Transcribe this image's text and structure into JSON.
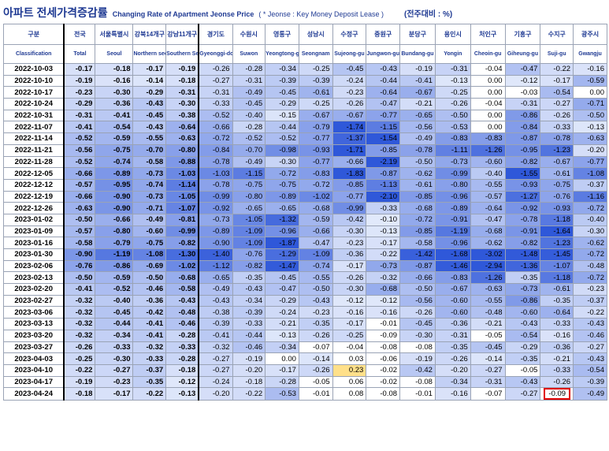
{
  "header": {
    "title_ko": "아파트 전세가격증감률",
    "title_en": "Changing Rate of Apartment Jeonse Price",
    "note": "( * Jeonse : Key Money Deposit Lease )",
    "unit": "(전주대비 : %)"
  },
  "columns": [
    {
      "ko": "구분",
      "en": "Classification"
    },
    {
      "ko": "전국",
      "en": "Total"
    },
    {
      "ko": "서울특별시",
      "en": "Seoul"
    },
    {
      "ko": "강북14개구",
      "en": "Northern seoul"
    },
    {
      "ko": "강남11개구",
      "en": "Southern Seoul"
    },
    {
      "ko": "경기도",
      "en": "Gyeonggi-do"
    },
    {
      "ko": "수원시",
      "en": "Suwon"
    },
    {
      "ko": "영통구",
      "en": "Yeongtong-gu"
    },
    {
      "ko": "성남시",
      "en": "Seongnam"
    },
    {
      "ko": "수정구",
      "en": "Sujeong-gu"
    },
    {
      "ko": "중원구",
      "en": "Jungwon-gu"
    },
    {
      "ko": "분당구",
      "en": "Bundang-gu"
    },
    {
      "ko": "용인시",
      "en": "Yongin"
    },
    {
      "ko": "처인구",
      "en": "Cheoin-gu"
    },
    {
      "ko": "기흥구",
      "en": "Giheung-gu"
    },
    {
      "ko": "수지구",
      "en": "Suji-gu"
    },
    {
      "ko": "광주시",
      "en": "Gwangju"
    }
  ],
  "rows": [
    {
      "date": "2022-10-03",
      "values": [
        "-0.17",
        "-0.18",
        "-0.17",
        "-0.19",
        "-0.26",
        "-0.28",
        "-0.34",
        "-0.25",
        "-0.45",
        "-0.43",
        "-0.19",
        "-0.31",
        "-0.04",
        "-0.47",
        "-0.22",
        "-0.16"
      ]
    },
    {
      "date": "2022-10-10",
      "values": [
        "-0.19",
        "-0.16",
        "-0.14",
        "-0.18",
        "-0.27",
        "-0.31",
        "-0.39",
        "-0.39",
        "-0.24",
        "-0.44",
        "-0.41",
        "-0.13",
        "0.00",
        "-0.12",
        "-0.17",
        "-0.59"
      ]
    },
    {
      "date": "2022-10-17",
      "values": [
        "-0.23",
        "-0.30",
        "-0.29",
        "-0.31",
        "-0.31",
        "-0.49",
        "-0.45",
        "-0.61",
        "-0.23",
        "-0.64",
        "-0.67",
        "-0.25",
        "0.00",
        "-0.03",
        "-0.54",
        "0.00"
      ]
    },
    {
      "date": "2022-10-24",
      "values": [
        "-0.29",
        "-0.36",
        "-0.43",
        "-0.30",
        "-0.33",
        "-0.45",
        "-0.29",
        "-0.25",
        "-0.26",
        "-0.47",
        "-0.21",
        "-0.26",
        "-0.04",
        "-0.31",
        "-0.27",
        "-0.71"
      ]
    },
    {
      "date": "2022-10-31",
      "values": [
        "-0.31",
        "-0.41",
        "-0.45",
        "-0.38",
        "-0.52",
        "-0.40",
        "-0.15",
        "-0.67",
        "-0.67",
        "-0.77",
        "-0.65",
        "-0.50",
        "0.00",
        "-0.86",
        "-0.26",
        "-0.50"
      ]
    },
    {
      "date": "2022-11-07",
      "values": [
        "-0.41",
        "-0.54",
        "-0.43",
        "-0.64",
        "-0.66",
        "-0.28",
        "-0.44",
        "-0.79",
        "-1.74",
        "-1.15",
        "-0.56",
        "-0.53",
        "0.00",
        "-0.84",
        "-0.33",
        "-0.13"
      ]
    },
    {
      "date": "2022-11-14",
      "values": [
        "-0.52",
        "-0.59",
        "-0.55",
        "-0.63",
        "-0.72",
        "-0.52",
        "-0.52",
        "-0.77",
        "-1.37",
        "-1.54",
        "-0.49",
        "-0.83",
        "-0.83",
        "-0.87",
        "-0.78",
        "-0.63"
      ]
    },
    {
      "date": "2022-11-21",
      "values": [
        "-0.56",
        "-0.75",
        "-0.70",
        "-0.80",
        "-0.84",
        "-0.70",
        "-0.98",
        "-0.93",
        "-1.71",
        "-0.85",
        "-0.78",
        "-1.11",
        "-1.26",
        "-0.95",
        "-1.23",
        "-0.20"
      ]
    },
    {
      "date": "2022-11-28",
      "values": [
        "-0.52",
        "-0.74",
        "-0.58",
        "-0.88",
        "-0.78",
        "-0.49",
        "-0.30",
        "-0.77",
        "-0.66",
        "-2.19",
        "-0.50",
        "-0.73",
        "-0.60",
        "-0.82",
        "-0.67",
        "-0.77"
      ]
    },
    {
      "date": "2022-12-05",
      "values": [
        "-0.66",
        "-0.89",
        "-0.73",
        "-1.03",
        "-1.03",
        "-1.15",
        "-0.72",
        "-0.83",
        "-1.83",
        "-0.87",
        "-0.62",
        "-0.99",
        "-0.40",
        "-1.55",
        "-0.61",
        "-1.08"
      ]
    },
    {
      "date": "2022-12-12",
      "values": [
        "-0.57",
        "-0.95",
        "-0.74",
        "-1.14",
        "-0.78",
        "-0.75",
        "-0.75",
        "-0.72",
        "-0.85",
        "-1.13",
        "-0.61",
        "-0.80",
        "-0.55",
        "-0.93",
        "-0.75",
        "-0.37"
      ]
    },
    {
      "date": "2022-12-19",
      "values": [
        "-0.66",
        "-0.90",
        "-0.73",
        "-1.05",
        "-0.99",
        "-0.80",
        "-0.89",
        "-1.02",
        "-0.77",
        "-2.10",
        "-0.85",
        "-0.96",
        "-0.57",
        "-1.27",
        "-0.76",
        "-1.16"
      ]
    },
    {
      "date": "2022-12-26",
      "values": [
        "-0.63",
        "-0.90",
        "-0.71",
        "-1.07",
        "-0.92",
        "-0.65",
        "-0.65",
        "-0.68",
        "-0.99",
        "-0.33",
        "-0.68",
        "-0.89",
        "-0.64",
        "-0.92",
        "-0.93",
        "-0.72"
      ]
    },
    {
      "date": "2023-01-02",
      "values": [
        "-0.50",
        "-0.66",
        "-0.49",
        "-0.81",
        "-0.73",
        "-1.05",
        "-1.32",
        "-0.59",
        "-0.42",
        "-0.10",
        "-0.72",
        "-0.91",
        "-0.47",
        "-0.78",
        "-1.18",
        "-0.40"
      ]
    },
    {
      "date": "2023-01-09",
      "values": [
        "-0.57",
        "-0.80",
        "-0.60",
        "-0.99",
        "-0.89",
        "-1.09",
        "-0.96",
        "-0.66",
        "-0.30",
        "-0.13",
        "-0.85",
        "-1.19",
        "-0.68",
        "-0.91",
        "-1.64",
        "-0.30"
      ]
    },
    {
      "date": "2023-01-16",
      "values": [
        "-0.58",
        "-0.79",
        "-0.75",
        "-0.82",
        "-0.90",
        "-1.09",
        "-1.87",
        "-0.47",
        "-0.23",
        "-0.17",
        "-0.58",
        "-0.96",
        "-0.62",
        "-0.82",
        "-1.23",
        "-0.62"
      ]
    },
    {
      "date": "2023-01-30",
      "values": [
        "-0.90",
        "-1.19",
        "-1.08",
        "-1.30",
        "-1.40",
        "-0.76",
        "-1.29",
        "-1.09",
        "-0.36",
        "-0.22",
        "-1.42",
        "-1.68",
        "-3.02",
        "-1.48",
        "-1.45",
        "-0.72"
      ]
    },
    {
      "date": "2023-02-06",
      "values": [
        "-0.76",
        "-0.86",
        "-0.69",
        "-1.02",
        "-1.12",
        "-0.82",
        "-1.47",
        "-0.74",
        "-0.17",
        "-0.73",
        "-0.87",
        "-1.46",
        "-2.94",
        "-1.36",
        "-1.07",
        "-0.48"
      ]
    },
    {
      "date": "2023-02-13",
      "values": [
        "-0.50",
        "-0.59",
        "-0.50",
        "-0.68",
        "-0.65",
        "-0.35",
        "-0.45",
        "-0.55",
        "-0.26",
        "-0.32",
        "-0.66",
        "-0.83",
        "-1.26",
        "-0.35",
        "-1.18",
        "-0.72"
      ]
    },
    {
      "date": "2023-02-20",
      "values": [
        "-0.41",
        "-0.52",
        "-0.46",
        "-0.58",
        "-0.49",
        "-0.43",
        "-0.47",
        "-0.50",
        "-0.30",
        "-0.68",
        "-0.50",
        "-0.67",
        "-0.63",
        "-0.73",
        "-0.61",
        "-0.23"
      ]
    },
    {
      "date": "2023-02-27",
      "values": [
        "-0.32",
        "-0.40",
        "-0.36",
        "-0.43",
        "-0.43",
        "-0.34",
        "-0.29",
        "-0.43",
        "-0.12",
        "-0.12",
        "-0.56",
        "-0.60",
        "-0.55",
        "-0.86",
        "-0.35",
        "-0.37"
      ]
    },
    {
      "date": "2023-03-06",
      "values": [
        "-0.32",
        "-0.45",
        "-0.42",
        "-0.48",
        "-0.38",
        "-0.39",
        "-0.24",
        "-0.23",
        "-0.16",
        "-0.16",
        "-0.26",
        "-0.60",
        "-0.48",
        "-0.60",
        "-0.64",
        "-0.22"
      ]
    },
    {
      "date": "2023-03-13",
      "values": [
        "-0.32",
        "-0.44",
        "-0.41",
        "-0.46",
        "-0.39",
        "-0.33",
        "-0.21",
        "-0.35",
        "-0.17",
        "-0.01",
        "-0.45",
        "-0.36",
        "-0.21",
        "-0.43",
        "-0.33",
        "-0.43"
      ]
    },
    {
      "date": "2023-03-20",
      "values": [
        "-0.32",
        "-0.34",
        "-0.41",
        "-0.28",
        "-0.41",
        "-0.44",
        "-0.13",
        "-0.26",
        "-0.25",
        "-0.09",
        "-0.30",
        "-0.31",
        "-0.05",
        "-0.54",
        "-0.16",
        "-0.46"
      ]
    },
    {
      "date": "2023-03-27",
      "values": [
        "-0.26",
        "-0.33",
        "-0.32",
        "-0.33",
        "-0.32",
        "-0.46",
        "-0.34",
        "-0.07",
        "-0.04",
        "-0.08",
        "-0.08",
        "-0.35",
        "-0.45",
        "-0.29",
        "-0.36",
        "-0.27"
      ]
    },
    {
      "date": "2023-04-03",
      "values": [
        "-0.25",
        "-0.30",
        "-0.33",
        "-0.28",
        "-0.27",
        "-0.19",
        "0.00",
        "-0.14",
        "0.03",
        "-0.06",
        "-0.19",
        "-0.26",
        "-0.14",
        "-0.35",
        "-0.21",
        "-0.43"
      ]
    },
    {
      "date": "2023-04-10",
      "values": [
        "-0.22",
        "-0.27",
        "-0.37",
        "-0.18",
        "-0.27",
        "-0.20",
        "-0.17",
        "-0.26",
        "0.23",
        "-0.02",
        "-0.42",
        "-0.20",
        "-0.27",
        "-0.05",
        "-0.33",
        "-0.54"
      ]
    },
    {
      "date": "2023-04-17",
      "values": [
        "-0.19",
        "-0.23",
        "-0.35",
        "-0.12",
        "-0.24",
        "-0.18",
        "-0.28",
        "-0.05",
        "0.06",
        "-0.02",
        "-0.08",
        "-0.34",
        "-0.31",
        "-0.43",
        "-0.26",
        "-0.39"
      ]
    },
    {
      "date": "2023-04-24",
      "values": [
        "-0.18",
        "-0.17",
        "-0.22",
        "-0.13",
        "-0.20",
        "-0.22",
        "-0.53",
        "-0.01",
        "0.08",
        "-0.08",
        "-0.01",
        "-0.16",
        "-0.07",
        "-0.27",
        "-0.09",
        "-0.49"
      ]
    }
  ],
  "colors": {
    "header_text": "#1f3a93",
    "positive_cell": "#ffe08a",
    "highlight_border": "#e00000",
    "scale_light": "#eef3fd",
    "scale_dark": "#2f58d9"
  },
  "highlight_cell": {
    "date": "2023-04-24",
    "column": "Suji-gu"
  }
}
